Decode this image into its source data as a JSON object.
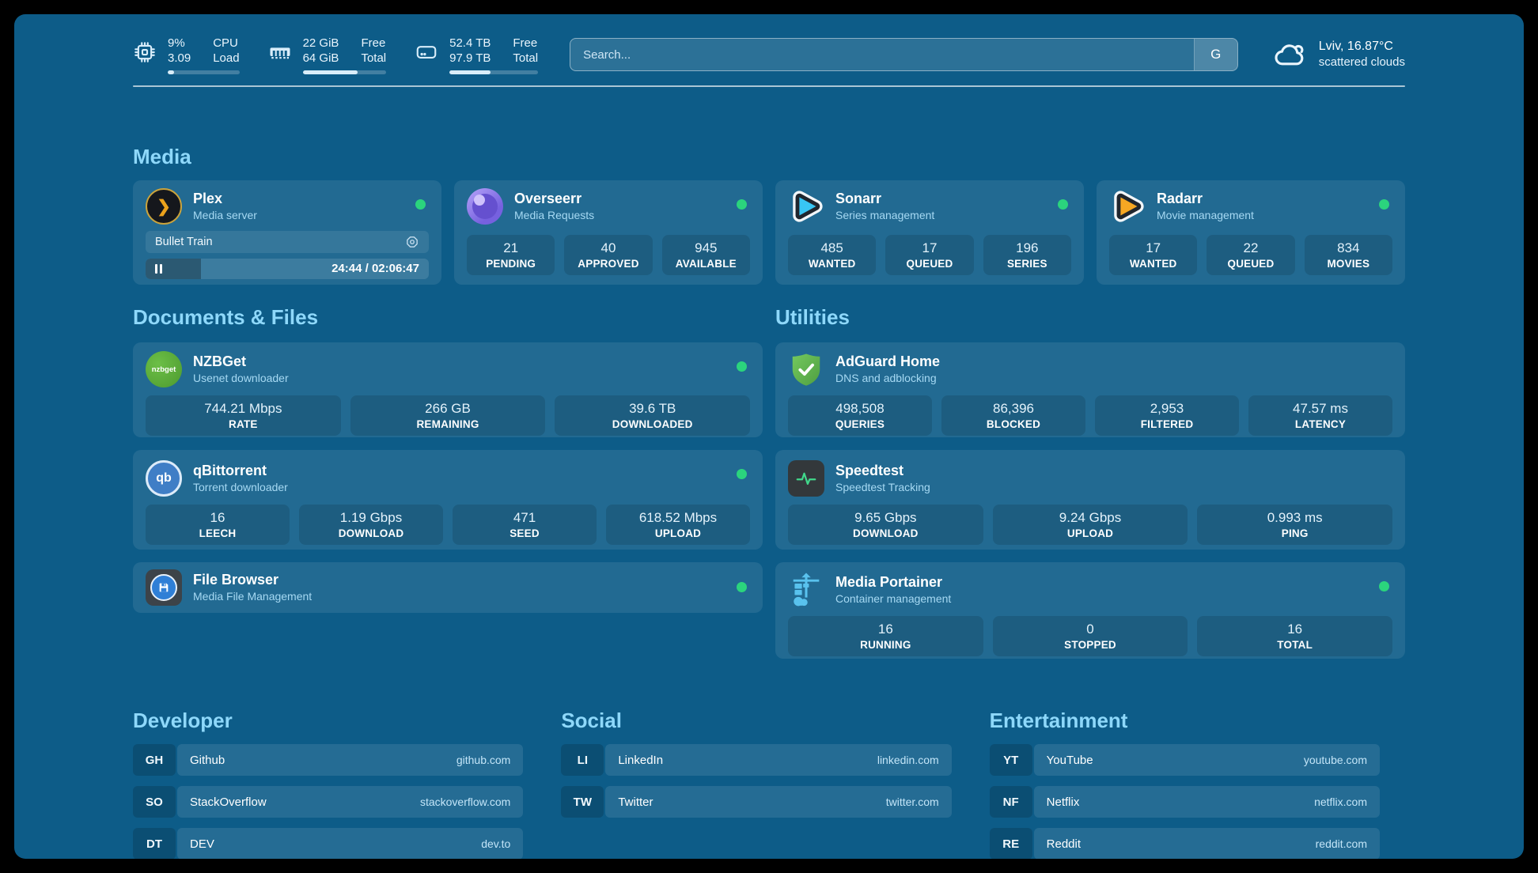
{
  "colors": {
    "page_background": "#000000",
    "dashboard_background": "#0d5c88",
    "section_title": "#8ed8fa",
    "status_online": "#2bd47d",
    "subtitle": "#a6d9f3"
  },
  "header": {
    "stats": [
      {
        "icon": "cpu-icon",
        "rows": [
          {
            "value": "9%",
            "label": "CPU"
          },
          {
            "value": "3.09",
            "label": "Load"
          }
        ],
        "progress_pct": 9
      },
      {
        "icon": "ram-icon",
        "rows": [
          {
            "value": "22 GiB",
            "label": "Free"
          },
          {
            "value": "64 GiB",
            "label": "Total"
          }
        ],
        "progress_pct": 66
      },
      {
        "icon": "disk-icon",
        "rows": [
          {
            "value": "52.4 TB",
            "label": "Free"
          },
          {
            "value": "97.9 TB",
            "label": "Total"
          }
        ],
        "progress_pct": 46
      }
    ],
    "search": {
      "placeholder": "Search...",
      "button_label": "G"
    },
    "weather": {
      "line1": "Lviv, 16.87°C",
      "line2": "scattered clouds"
    }
  },
  "sections": {
    "media": "Media",
    "documents": "Documents & Files",
    "utilities": "Utilities",
    "developer": "Developer",
    "social": "Social",
    "entertainment": "Entertainment"
  },
  "apps": {
    "plex": {
      "name": "Plex",
      "subtitle": "Media server",
      "status": "online",
      "icon_glyph": "❯",
      "now_playing": {
        "title": "Bullet Train",
        "time_display": "24:44 / 02:06:47",
        "progress_pct": 19.5
      }
    },
    "overseerr": {
      "name": "Overseerr",
      "subtitle": "Media Requests",
      "status": "online",
      "stats": [
        {
          "value": "21",
          "label": "PENDING"
        },
        {
          "value": "40",
          "label": "APPROVED"
        },
        {
          "value": "945",
          "label": "AVAILABLE"
        }
      ]
    },
    "sonarr": {
      "name": "Sonarr",
      "subtitle": "Series management",
      "status": "online",
      "stats": [
        {
          "value": "485",
          "label": "WANTED"
        },
        {
          "value": "17",
          "label": "QUEUED"
        },
        {
          "value": "196",
          "label": "SERIES"
        }
      ]
    },
    "radarr": {
      "name": "Radarr",
      "subtitle": "Movie management",
      "status": "online",
      "stats": [
        {
          "value": "17",
          "label": "WANTED"
        },
        {
          "value": "22",
          "label": "QUEUED"
        },
        {
          "value": "834",
          "label": "MOVIES"
        }
      ]
    },
    "nzbget": {
      "name": "NZBGet",
      "subtitle": "Usenet downloader",
      "status": "online",
      "icon_label": "nzbget",
      "stats": [
        {
          "value": "744.21 Mbps",
          "label": "RATE"
        },
        {
          "value": "266 GB",
          "label": "REMAINING"
        },
        {
          "value": "39.6 TB",
          "label": "DOWNLOADED"
        }
      ]
    },
    "qbittorrent": {
      "name": "qBittorrent",
      "subtitle": "Torrent downloader",
      "status": "online",
      "icon_label": "qb",
      "stats": [
        {
          "value": "16",
          "label": "LEECH"
        },
        {
          "value": "1.19 Gbps",
          "label": "DOWNLOAD"
        },
        {
          "value": "471",
          "label": "SEED"
        },
        {
          "value": "618.52 Mbps",
          "label": "UPLOAD"
        }
      ]
    },
    "filebrowser": {
      "name": "File Browser",
      "subtitle": "Media File Management",
      "status": "online"
    },
    "adguard": {
      "name": "AdGuard Home",
      "subtitle": "DNS and adblocking",
      "stats": [
        {
          "value": "498,508",
          "label": "QUERIES"
        },
        {
          "value": "86,396",
          "label": "BLOCKED"
        },
        {
          "value": "2,953",
          "label": "FILTERED"
        },
        {
          "value": "47.57 ms",
          "label": "LATENCY"
        }
      ]
    },
    "speedtest": {
      "name": "Speedtest",
      "subtitle": "Speedtest Tracking",
      "stats": [
        {
          "value": "9.65 Gbps",
          "label": "DOWNLOAD"
        },
        {
          "value": "9.24 Gbps",
          "label": "UPLOAD"
        },
        {
          "value": "0.993 ms",
          "label": "PING"
        }
      ]
    },
    "portainer": {
      "name": "Media Portainer",
      "subtitle": "Container management",
      "status": "online",
      "stats": [
        {
          "value": "16",
          "label": "RUNNING"
        },
        {
          "value": "0",
          "label": "STOPPED"
        },
        {
          "value": "16",
          "label": "TOTAL"
        }
      ]
    }
  },
  "links": {
    "developer": [
      {
        "abbr": "GH",
        "name": "Github",
        "domain": "github.com"
      },
      {
        "abbr": "SO",
        "name": "StackOverflow",
        "domain": "stackoverflow.com"
      },
      {
        "abbr": "DT",
        "name": "DEV",
        "domain": "dev.to"
      }
    ],
    "social": [
      {
        "abbr": "LI",
        "name": "LinkedIn",
        "domain": "linkedin.com"
      },
      {
        "abbr": "TW",
        "name": "Twitter",
        "domain": "twitter.com"
      }
    ],
    "entertainment": [
      {
        "abbr": "YT",
        "name": "YouTube",
        "domain": "youtube.com"
      },
      {
        "abbr": "NF",
        "name": "Netflix",
        "domain": "netflix.com"
      },
      {
        "abbr": "RE",
        "name": "Reddit",
        "domain": "reddit.com"
      }
    ]
  }
}
